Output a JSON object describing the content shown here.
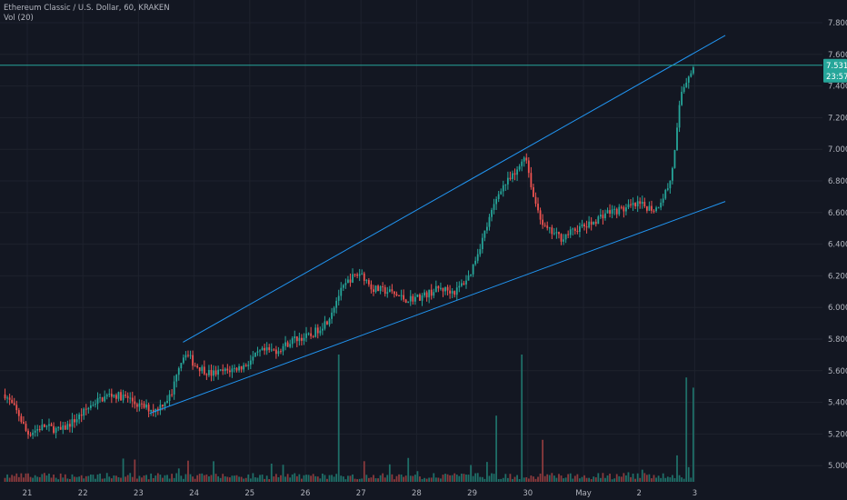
{
  "legend": {
    "title": "Ethereum Classic / U.S. Dollar, 60, KRAKEN",
    "volume": "Vol (20)"
  },
  "colors": {
    "background": "#131722",
    "up": "#26a69a",
    "down": "#ef5350",
    "up_volume": "#1f6f68",
    "down_volume": "#8b3a3d",
    "trendline": "#2196f3",
    "price_line": "#26a69a",
    "grid": "#1e222d",
    "axis_text": "#b2b5be"
  },
  "price_badge": {
    "price": "7.531",
    "countdown": "23:57"
  },
  "chart_data": {
    "type": "candlestick",
    "title": "Ethereum Classic / U.S. Dollar, 60, KRAKEN",
    "ylabel": "",
    "xlabel": "",
    "ylim": [
      4.9,
      7.9
    ],
    "yticks": [
      5.0,
      5.2,
      5.4,
      5.6,
      5.8,
      6.0,
      6.2,
      6.4,
      6.6,
      6.8,
      7.0,
      7.2,
      7.4,
      7.6,
      7.8
    ],
    "ytick_labels": [
      "5.000",
      "5.200",
      "5.400",
      "5.600",
      "5.800",
      "6.000",
      "6.200",
      "6.400",
      "6.600",
      "6.800",
      "7.000",
      "7.200",
      "7.400",
      "7.600",
      "7.800"
    ],
    "xticks": [
      {
        "label": "21",
        "day": 21
      },
      {
        "label": "22",
        "day": 22
      },
      {
        "label": "23",
        "day": 23
      },
      {
        "label": "24",
        "day": 24
      },
      {
        "label": "25",
        "day": 25
      },
      {
        "label": "26",
        "day": 26
      },
      {
        "label": "27",
        "day": 27
      },
      {
        "label": "28",
        "day": 28
      },
      {
        "label": "29",
        "day": 29
      },
      {
        "label": "30",
        "day": 30
      },
      {
        "label": "May",
        "day": 31
      },
      {
        "label": "2",
        "day": 32
      },
      {
        "label": "3",
        "day": 33
      }
    ],
    "x_range_days": [
      20.6,
      33.55
    ],
    "anchors": [
      [
        20.6,
        5.45
      ],
      [
        20.85,
        5.32
      ],
      [
        21.0,
        5.2
      ],
      [
        21.3,
        5.25
      ],
      [
        21.6,
        5.22
      ],
      [
        21.9,
        5.3
      ],
      [
        22.2,
        5.4
      ],
      [
        22.5,
        5.45
      ],
      [
        22.8,
        5.43
      ],
      [
        23.0,
        5.38
      ],
      [
        23.3,
        5.35
      ],
      [
        23.6,
        5.45
      ],
      [
        23.7,
        5.62
      ],
      [
        23.85,
        5.72
      ],
      [
        24.0,
        5.64
      ],
      [
        24.3,
        5.58
      ],
      [
        24.6,
        5.6
      ],
      [
        24.9,
        5.63
      ],
      [
        25.2,
        5.72
      ],
      [
        25.5,
        5.73
      ],
      [
        25.8,
        5.8
      ],
      [
        26.1,
        5.82
      ],
      [
        26.4,
        5.92
      ],
      [
        26.6,
        6.08
      ],
      [
        26.8,
        6.18
      ],
      [
        27.0,
        6.22
      ],
      [
        27.2,
        6.12
      ],
      [
        27.5,
        6.1
      ],
      [
        27.8,
        6.05
      ],
      [
        28.1,
        6.07
      ],
      [
        28.4,
        6.12
      ],
      [
        28.7,
        6.1
      ],
      [
        28.95,
        6.2
      ],
      [
        29.2,
        6.45
      ],
      [
        29.5,
        6.75
      ],
      [
        29.8,
        6.85
      ],
      [
        29.95,
        6.98
      ],
      [
        30.1,
        6.7
      ],
      [
        30.3,
        6.5
      ],
      [
        30.6,
        6.44
      ],
      [
        30.9,
        6.5
      ],
      [
        31.1,
        6.52
      ],
      [
        31.4,
        6.6
      ],
      [
        31.7,
        6.62
      ],
      [
        32.0,
        6.65
      ],
      [
        32.3,
        6.62
      ],
      [
        32.55,
        6.78
      ],
      [
        32.65,
        7.0
      ],
      [
        32.75,
        7.35
      ],
      [
        32.9,
        7.48
      ],
      [
        33.0,
        7.531
      ]
    ],
    "volume_spikes": [
      {
        "day": 26.6,
        "value": 1.0
      },
      {
        "day": 29.45,
        "value": 0.52
      },
      {
        "day": 29.9,
        "value": 1.0
      },
      {
        "day": 30.25,
        "value": 0.33
      },
      {
        "day": 32.85,
        "value": 0.82
      },
      {
        "day": 32.98,
        "value": 0.74
      }
    ],
    "trendlines": [
      {
        "name": "upper",
        "x": [
          23.8,
          33.55
        ],
        "y": [
          5.78,
          7.72
        ]
      },
      {
        "name": "lower",
        "x": [
          23.2,
          33.55
        ],
        "y": [
          5.33,
          6.67
        ]
      }
    ],
    "last_price": 7.531
  }
}
